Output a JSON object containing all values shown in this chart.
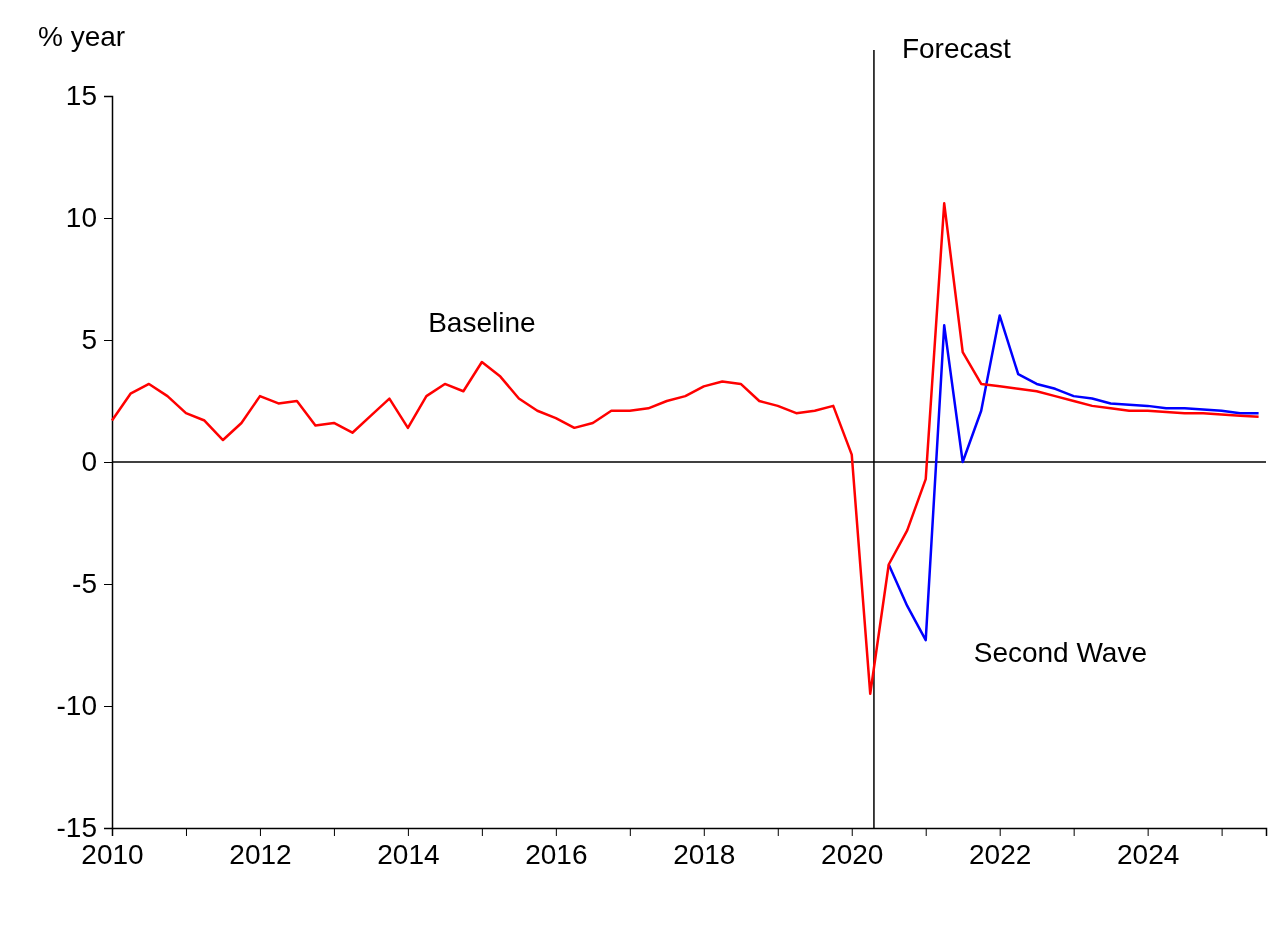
{
  "chart_data": {
    "type": "line",
    "ylabel": "% year",
    "xlim": [
      2010,
      2025.6
    ],
    "ylim": [
      -15,
      15
    ],
    "xticks": [
      2010,
      {
        "value": 2011,
        "label": null
      },
      2012,
      {
        "value": 2013,
        "label": null
      },
      2014,
      {
        "value": 2015,
        "label": null
      },
      2016,
      {
        "value": 2017,
        "label": null
      },
      2018,
      {
        "value": 2019,
        "label": null
      },
      2020,
      {
        "value": 2021,
        "label": null
      },
      2022,
      {
        "value": 2023,
        "label": null
      },
      2024,
      {
        "value": 2025,
        "label": null
      }
    ],
    "yticks": [
      -15,
      -10,
      -5,
      0,
      5,
      10,
      15
    ],
    "grid": false,
    "legend": false,
    "marker": "none",
    "line_style": "solid",
    "ref_lines": [
      {
        "axis": "y",
        "value": 0,
        "label": null,
        "color": "#000000"
      },
      {
        "axis": "x",
        "value": 2020.3,
        "label": "Forecast",
        "color": "#000000"
      }
    ],
    "series": [
      {
        "name": "Second Wave",
        "color": "#0000ff",
        "x": [
          2020.5,
          2020.75,
          2021,
          2021.25,
          2021.5,
          2021.75,
          2022,
          2022.25,
          2022.5,
          2022.75,
          2023,
          2023.25,
          2023.5,
          2023.75,
          2024,
          2024.25,
          2024.5,
          2024.75,
          2025,
          2025.25,
          2025.5
        ],
        "values": [
          -4.2,
          -5.9,
          -7.3,
          5.6,
          0.0,
          2.1,
          6.0,
          3.6,
          3.2,
          3.0,
          2.7,
          2.6,
          2.4,
          2.35,
          2.3,
          2.2,
          2.2,
          2.15,
          2.1,
          2.0,
          2.0
        ]
      },
      {
        "name": "Baseline",
        "color": "#ff0000",
        "x": [
          2010,
          2010.25,
          2010.5,
          2010.75,
          2011,
          2011.25,
          2011.5,
          2011.75,
          2012,
          2012.25,
          2012.5,
          2012.75,
          2013,
          2013.25,
          2013.5,
          2013.75,
          2014,
          2014.25,
          2014.5,
          2014.75,
          2015,
          2015.25,
          2015.5,
          2015.75,
          2016,
          2016.25,
          2016.5,
          2016.75,
          2017,
          2017.25,
          2017.5,
          2017.75,
          2018,
          2018.25,
          2018.5,
          2018.75,
          2019,
          2019.25,
          2019.5,
          2019.75,
          2020,
          2020.25,
          2020.5,
          2020.75,
          2021,
          2021.25,
          2021.5,
          2021.75,
          2022,
          2022.25,
          2022.5,
          2022.75,
          2023,
          2023.25,
          2023.5,
          2023.75,
          2024,
          2024.25,
          2024.5,
          2024.75,
          2025,
          2025.25,
          2025.5
        ],
        "values": [
          1.7,
          2.8,
          3.2,
          2.7,
          2.0,
          1.7,
          0.9,
          1.6,
          2.7,
          2.4,
          2.5,
          1.5,
          1.6,
          1.2,
          1.9,
          2.6,
          1.4,
          2.7,
          3.2,
          2.9,
          4.1,
          3.5,
          2.6,
          2.1,
          1.8,
          1.4,
          1.6,
          2.1,
          2.1,
          2.2,
          2.5,
          2.7,
          3.1,
          3.3,
          3.2,
          2.5,
          2.3,
          2.0,
          2.1,
          2.3,
          0.3,
          -9.5,
          -4.2,
          -2.8,
          -0.7,
          10.6,
          4.5,
          3.2,
          3.1,
          3.0,
          2.9,
          2.7,
          2.5,
          2.3,
          2.2,
          2.1,
          2.1,
          2.05,
          2.0,
          2.0,
          1.95,
          1.9,
          1.85
        ]
      }
    ]
  }
}
